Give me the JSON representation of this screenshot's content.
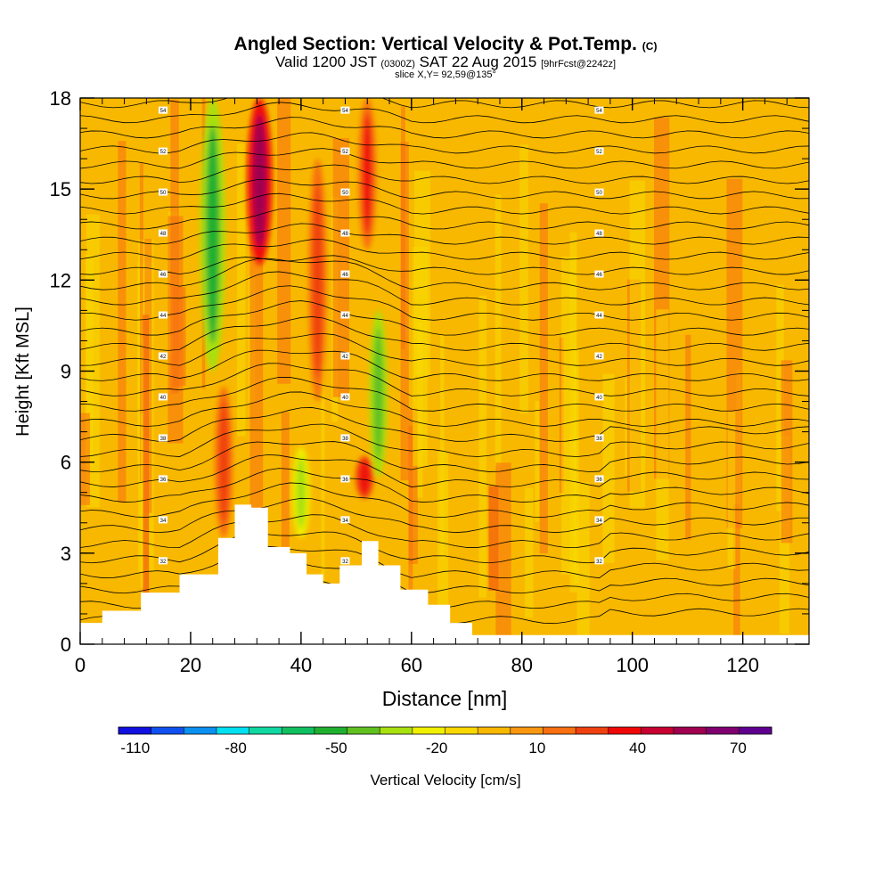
{
  "header": {
    "title": "Angled Section: Vertical Velocity & Pot.Temp.",
    "title_units": "(C)",
    "subtitle_valid": "Valid 1200 JST",
    "subtitle_utc": "(0300Z)",
    "subtitle_date": "SAT 22 Aug 2015",
    "subtitle_fcst": "[9hrFcst@2242z]",
    "slice_info": "slice X,Y= 92,59@135°"
  },
  "chart_data": {
    "type": "heatmap",
    "title": "Angled Section: Vertical Velocity & Pot.Temp.",
    "xlabel": "Distance [nm]",
    "ylabel": "Height [Kft MSL]",
    "xlim": [
      0,
      132
    ],
    "ylim": [
      0,
      18
    ],
    "x_ticks": [
      0,
      20,
      40,
      60,
      80,
      100,
      120
    ],
    "y_ticks": [
      0,
      3,
      6,
      9,
      12,
      15,
      18
    ],
    "colorbar": {
      "label": "Vertical Velocity [cm/s]",
      "range": [
        -115,
        80
      ],
      "step": 10,
      "tick_labels": [
        -110,
        -80,
        -50,
        -20,
        10,
        40,
        70
      ],
      "colors": [
        "#1010e0",
        "#1050f0",
        "#0a90f0",
        "#00e0f0",
        "#10d8a0",
        "#10c060",
        "#20b030",
        "#60c020",
        "#a8e010",
        "#f0f000",
        "#f8d800",
        "#f8b800",
        "#f89810",
        "#f87010",
        "#f04010",
        "#f00808",
        "#c80030",
        "#a00050",
        "#800070",
        "#600090"
      ]
    },
    "terrain_ridge_profile": [
      {
        "x": 0,
        "h": 0.7
      },
      {
        "x": 4,
        "h": 1.1
      },
      {
        "x": 11,
        "h": 1.7
      },
      {
        "x": 15,
        "h": 1.7
      },
      {
        "x": 18,
        "h": 2.3
      },
      {
        "x": 22,
        "h": 2.3
      },
      {
        "x": 25,
        "h": 3.5
      },
      {
        "x": 28,
        "h": 4.6
      },
      {
        "x": 31,
        "h": 4.5
      },
      {
        "x": 34,
        "h": 3.2
      },
      {
        "x": 38,
        "h": 3.0
      },
      {
        "x": 41,
        "h": 2.3
      },
      {
        "x": 44,
        "h": 2.0
      },
      {
        "x": 47,
        "h": 2.6
      },
      {
        "x": 51,
        "h": 3.4
      },
      {
        "x": 54,
        "h": 2.6
      },
      {
        "x": 58,
        "h": 1.8
      },
      {
        "x": 63,
        "h": 1.3
      },
      {
        "x": 67,
        "h": 0.7
      },
      {
        "x": 71,
        "h": 0.3
      },
      {
        "x": 132,
        "h": 0.3
      }
    ],
    "velocity_features": [
      {
        "x": 26,
        "ytop": 8.5,
        "ybot": 3.5,
        "w": 28,
        "label": "updraft"
      },
      {
        "x": 32.5,
        "ytop": 18,
        "ybot": 12.5,
        "w": 60,
        "label": "updraft core"
      },
      {
        "x": 43,
        "ytop": 16,
        "ybot": 8,
        "w": 30,
        "label": "updraft"
      },
      {
        "x": 52,
        "ytop": 18,
        "ybot": 13,
        "w": 40,
        "label": "updraft"
      },
      {
        "x": 51.5,
        "ytop": 6.2,
        "ybot": 4.8,
        "w": 42,
        "label": "updraft"
      },
      {
        "x": 24,
        "ytop": 18,
        "ybot": 9,
        "w": -50,
        "label": "downdraft"
      },
      {
        "x": 54,
        "ytop": 11,
        "ybot": 5.5,
        "w": -45,
        "label": "downdraft"
      },
      {
        "x": 40,
        "ytop": 6.5,
        "ybot": 3.5,
        "w": -35,
        "label": "downdraft"
      }
    ],
    "isentrope_labels": [
      "54",
      "52",
      "50",
      "48",
      "46",
      "44",
      "42",
      "40",
      "38",
      "36",
      "34",
      "32"
    ]
  }
}
